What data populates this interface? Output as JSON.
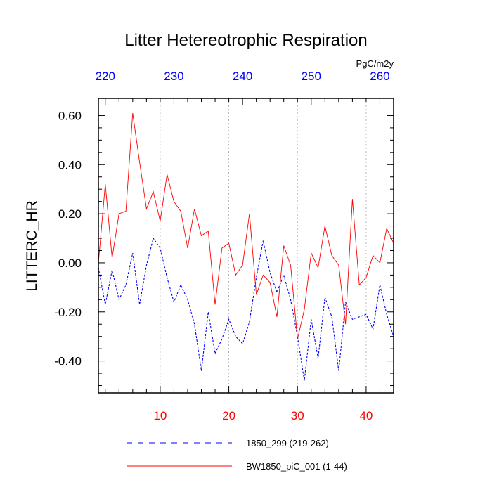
{
  "chart_data": {
    "type": "line",
    "title": "Litter Hetereotrophic Respiration",
    "ylabel": "LITTERC_HR",
    "units": "PgC/m2y",
    "ylim": [
      -0.53,
      0.67
    ],
    "bottom_axis": {
      "range": [
        1,
        44
      ],
      "ticks": [
        "10",
        "20",
        "30",
        "40"
      ],
      "color": "#ff0000"
    },
    "top_axis": {
      "range": [
        219,
        262
      ],
      "ticks": [
        "220",
        "230",
        "240",
        "250",
        "260"
      ],
      "color": "#0000ff"
    },
    "y_ticks": [
      "0.60",
      "0.40",
      "0.20",
      "0.00",
      "-0.20",
      "-0.40"
    ],
    "series": [
      {
        "name": "1850_299 (219-262)",
        "color": "#0000ff",
        "dash": true,
        "x": [
          1,
          2,
          3,
          4,
          5,
          6,
          7,
          8,
          9,
          10,
          11,
          12,
          13,
          14,
          15,
          16,
          17,
          18,
          19,
          20,
          21,
          22,
          23,
          24,
          25,
          26,
          27,
          28,
          29,
          30,
          31,
          32,
          33,
          34,
          35,
          36,
          37,
          38,
          39,
          40,
          41,
          42,
          43,
          44
        ],
        "values": [
          -0.02,
          -0.17,
          -0.03,
          -0.15,
          -0.09,
          0.04,
          -0.17,
          -0.01,
          0.1,
          0.06,
          -0.06,
          -0.16,
          -0.09,
          -0.15,
          -0.25,
          -0.44,
          -0.2,
          -0.37,
          -0.31,
          -0.23,
          -0.3,
          -0.33,
          -0.24,
          -0.06,
          0.09,
          -0.04,
          -0.12,
          -0.05,
          -0.15,
          -0.3,
          -0.48,
          -0.23,
          -0.39,
          -0.14,
          -0.22,
          -0.44,
          -0.16,
          -0.23,
          -0.22,
          -0.21,
          -0.27,
          -0.09,
          -0.21,
          -0.3
        ]
      },
      {
        "name": "BW1850_piC_001 (1-44)",
        "color": "#ff0000",
        "dash": false,
        "x": [
          1,
          2,
          3,
          4,
          5,
          6,
          7,
          8,
          9,
          10,
          11,
          12,
          13,
          14,
          15,
          16,
          17,
          18,
          19,
          20,
          21,
          22,
          23,
          24,
          25,
          26,
          27,
          28,
          29,
          30,
          31,
          32,
          33,
          34,
          35,
          36,
          37,
          38,
          39,
          40,
          41,
          42,
          43,
          44
        ],
        "values": [
          0.0,
          0.32,
          0.02,
          0.2,
          0.21,
          0.61,
          0.41,
          0.22,
          0.29,
          0.17,
          0.36,
          0.25,
          0.21,
          0.06,
          0.22,
          0.11,
          0.13,
          -0.17,
          0.06,
          0.08,
          -0.05,
          -0.01,
          0.2,
          -0.13,
          -0.05,
          -0.08,
          -0.22,
          0.07,
          -0.01,
          -0.31,
          -0.19,
          0.04,
          -0.02,
          0.15,
          0.03,
          -0.01,
          -0.25,
          0.26,
          -0.09,
          -0.06,
          0.03,
          0.0,
          0.14,
          0.08
        ]
      }
    ]
  }
}
